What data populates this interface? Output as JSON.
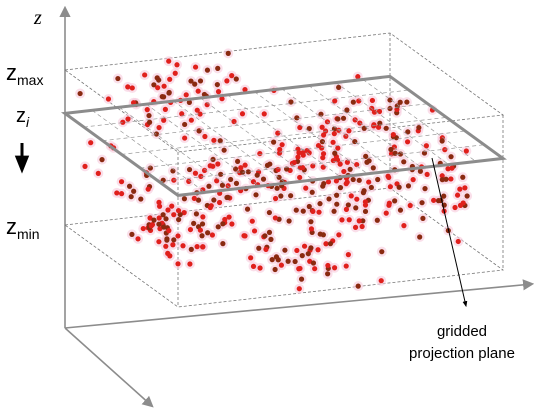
{
  "axis_label": "z",
  "levels": [
    {
      "symbol": "z",
      "subscript": "max"
    },
    {
      "symbol": "z",
      "subscript": "i"
    },
    {
      "symbol": "z",
      "subscript": "min"
    }
  ],
  "annotation": [
    "gridded",
    "projection plane"
  ]
}
